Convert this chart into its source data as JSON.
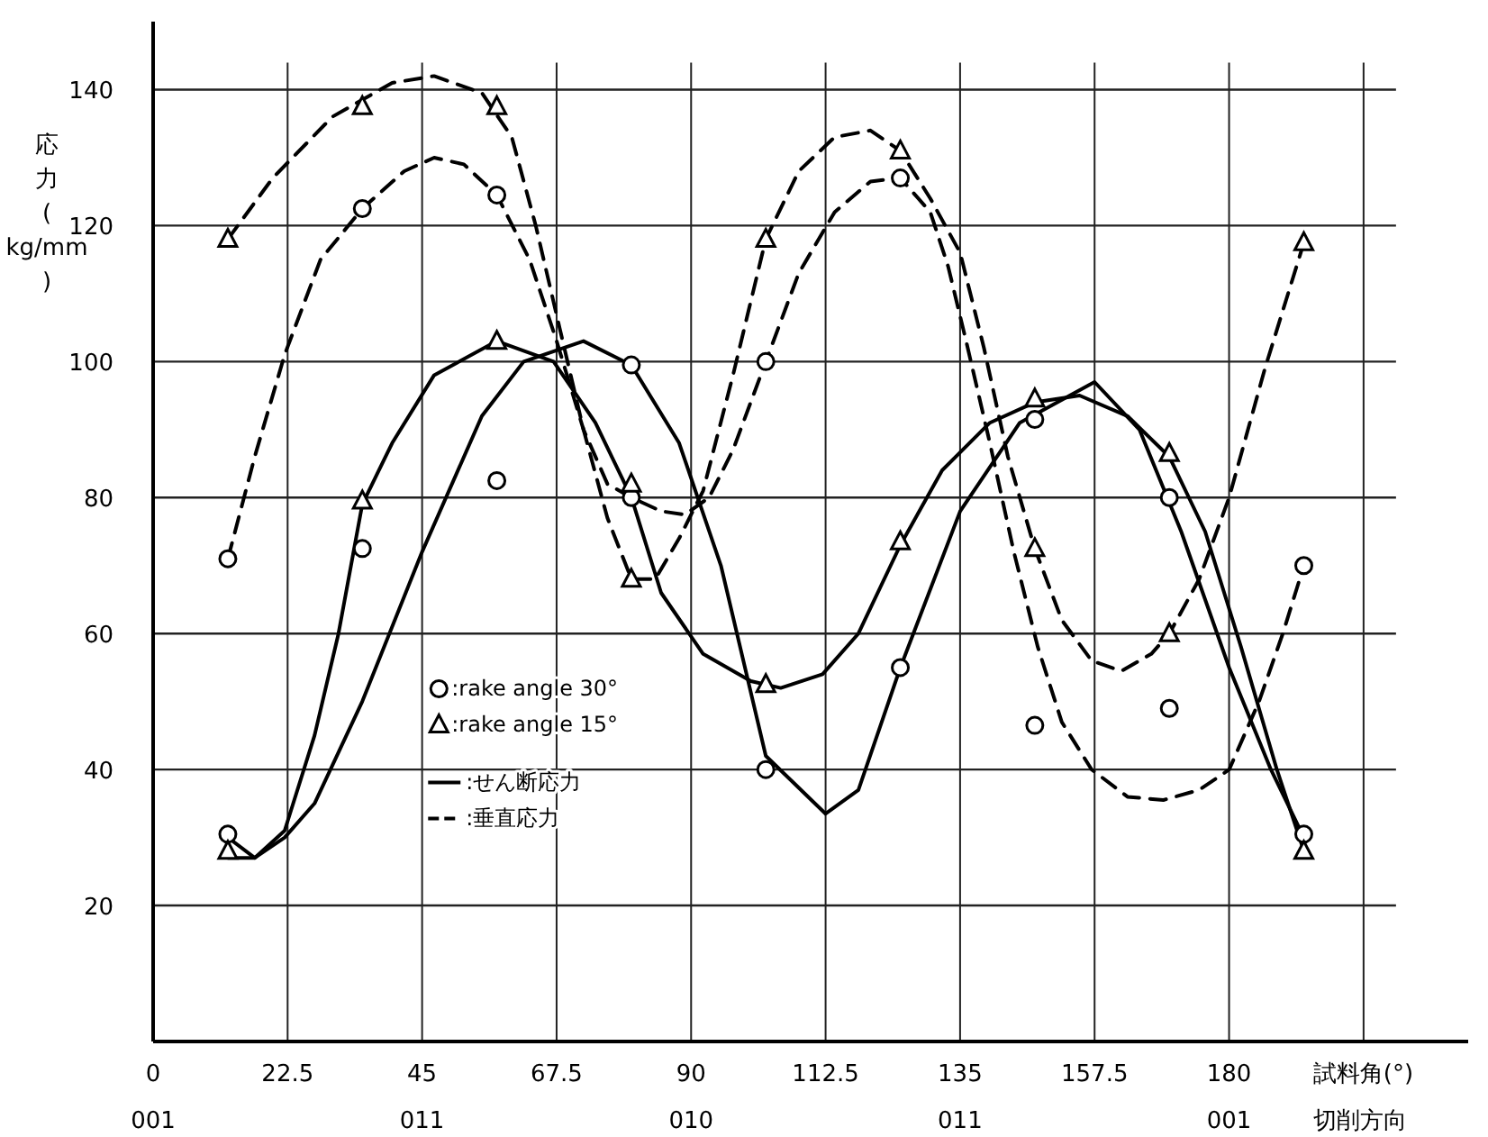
{
  "chart_data": {
    "type": "scatter",
    "xlabel": "試料角(°)",
    "ylabel": "応力(kg/mm)",
    "xlim": [
      0,
      220
    ],
    "ylim": [
      0,
      150
    ],
    "annotations": [
      "001",
      "011",
      "010",
      "011",
      "001",
      "切削方向"
    ],
    "xticks": [
      0,
      22.5,
      45,
      67.5,
      90,
      112.5,
      135,
      157.5,
      180,
      {
        "value": 202.5,
        "label": null
      }
    ],
    "yticks": [
      20,
      40,
      60,
      80,
      100,
      120,
      140
    ],
    "grid": true,
    "legend": "left",
    "series": [
      {
        "name": ":rake angle 30°",
        "marker": "circle",
        "color": "#000000",
        "x": [
          12.5,
          12.5,
          35,
          35,
          57.5,
          57.5,
          80,
          80,
          102.5,
          102.5,
          125,
          125,
          147.5,
          147.5,
          170,
          170,
          192.5,
          192.5
        ],
        "values": [
          71,
          30.5,
          122.5,
          72.5,
          124.5,
          82.5,
          99.5,
          80,
          100,
          40,
          127,
          55,
          91.5,
          46.5,
          80,
          49,
          70,
          30.5
        ]
      },
      {
        "name": ":rake angle 15°",
        "marker": "triangle",
        "color": "#000000",
        "x": [
          12.5,
          12.5,
          35,
          35,
          57.5,
          57.5,
          80,
          80,
          102.5,
          102.5,
          125,
          125,
          147.5,
          147.5,
          170,
          170,
          192.5,
          192.5
        ],
        "values": [
          118,
          28,
          137.5,
          79.5,
          137.5,
          103,
          82,
          68,
          118,
          52.5,
          131,
          73.5,
          94.5,
          72.5,
          86.5,
          60,
          117.5,
          28
        ]
      },
      {
        "name": ":せん断応力",
        "type": "line",
        "marker": "none",
        "line_style": "solid",
        "color": "#000000",
        "x": [
          12.5,
          17,
          22,
          27,
          35,
          45,
          55,
          62,
          72,
          80,
          88,
          95,
          102.5,
          112.5,
          118,
          125,
          135,
          145,
          157.5,
          165,
          172,
          180,
          187,
          192.5
        ],
        "values": [
          30,
          27,
          30,
          35,
          50,
          72,
          92,
          100,
          103,
          99.5,
          88,
          70,
          42,
          33.5,
          37,
          55,
          78,
          91,
          97,
          90,
          75,
          55,
          40,
          30
        ]
      },
      {
        "type": "line",
        "marker": "none",
        "line_style": "solid",
        "color": "#000000",
        "x": [
          12.5,
          17,
          22,
          27,
          31,
          35,
          40,
          47,
          57.5,
          67,
          74,
          80,
          85,
          92,
          100,
          105,
          112,
          118,
          125,
          132,
          140,
          147.5,
          155,
          163,
          170,
          176,
          182,
          188,
          192.5
        ],
        "values": [
          27,
          27,
          31,
          45,
          60,
          79,
          88,
          98,
          103,
          100,
          91,
          80,
          66,
          57,
          53,
          52,
          54,
          60,
          73,
          84,
          91,
          94,
          95,
          92,
          86,
          75,
          58,
          40,
          28
        ]
      },
      {
        "name": ":垂直応力",
        "type": "line",
        "marker": "none",
        "line_style": "dashed",
        "color": "#000000",
        "x": [
          12.5,
          17,
          22,
          28,
          35,
          42,
          47,
          52,
          57.5,
          63,
          67.5,
          72,
          76,
          80,
          85,
          89,
          93,
          97,
          102.5,
          108,
          114,
          120,
          125,
          130,
          133,
          136,
          140,
          144,
          148,
          152,
          157,
          163,
          169,
          175,
          180,
          185,
          189,
          192.5
        ],
        "values": [
          71,
          86,
          101,
          115,
          122.5,
          128,
          130,
          129,
          124.5,
          115,
          103,
          90,
          82,
          80,
          78,
          77.5,
          80,
          87,
          100,
          113,
          122,
          126.5,
          127,
          122,
          114,
          103,
          88,
          72,
          58,
          47,
          40,
          36,
          35.5,
          37,
          40,
          50,
          60,
          70
        ]
      },
      {
        "type": "line",
        "marker": "none",
        "line_style": "dashed",
        "color": "#000000",
        "x": [
          12.5,
          20,
          30,
          40,
          47,
          55,
          60,
          64,
          68,
          72,
          76,
          80,
          84,
          88,
          92,
          97,
          102.5,
          108,
          114,
          120,
          125,
          130,
          135,
          139,
          143,
          147.5,
          152,
          157,
          162,
          167,
          170,
          175,
          180,
          186,
          192.5
        ],
        "values": [
          118,
          127,
          136,
          141,
          142,
          139.5,
          133,
          120,
          105,
          90,
          77,
          68,
          68,
          74,
          81,
          98,
          118,
          128,
          133,
          134,
          131,
          124,
          116,
          102,
          86,
          72.5,
          62,
          56,
          54.5,
          57,
          60,
          68,
          80,
          99,
          117.5
        ]
      }
    ]
  }
}
